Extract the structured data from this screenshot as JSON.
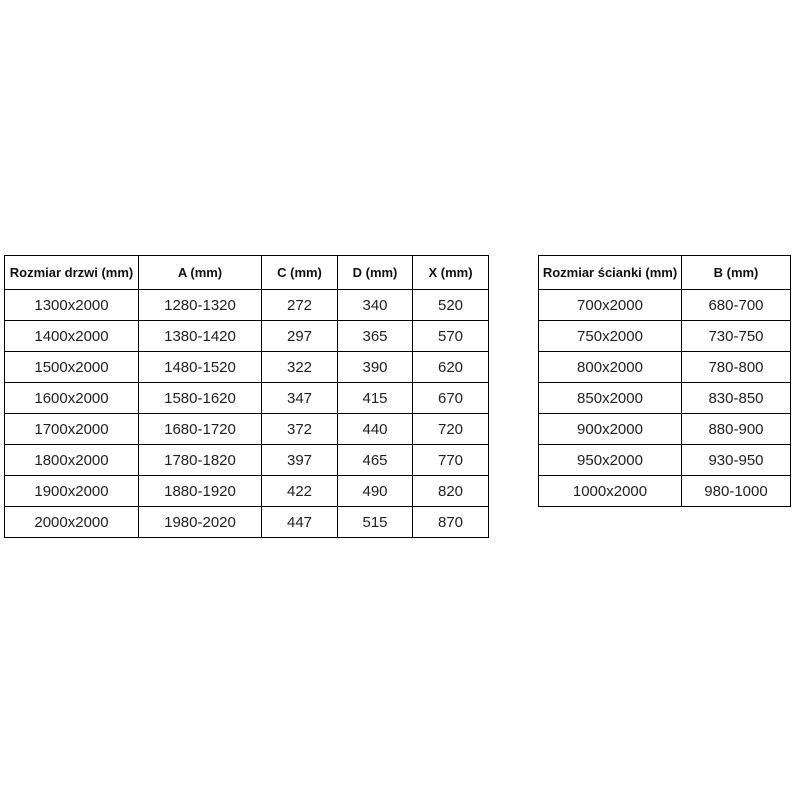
{
  "page": {
    "background_color": "#ffffff",
    "table_border_color": "#000000",
    "text_color": "#1f1f1f"
  },
  "tables": [
    {
      "name": "door-size-table",
      "headers": [
        "Rozmiar drzwi (mm)",
        "A (mm)",
        "C (mm)",
        "D (mm)",
        "X (mm)"
      ],
      "rows": [
        [
          "1300x2000",
          "1280-1320",
          "272",
          "340",
          "520"
        ],
        [
          "1400x2000",
          "1380-1420",
          "297",
          "365",
          "570"
        ],
        [
          "1500x2000",
          "1480-1520",
          "322",
          "390",
          "620"
        ],
        [
          "1600x2000",
          "1580-1620",
          "347",
          "415",
          "670"
        ],
        [
          "1700x2000",
          "1680-1720",
          "372",
          "440",
          "720"
        ],
        [
          "1800x2000",
          "1780-1820",
          "397",
          "465",
          "770"
        ],
        [
          "1900x2000",
          "1880-1920",
          "422",
          "490",
          "820"
        ],
        [
          "2000x2000",
          "1980-2020",
          "447",
          "515",
          "870"
        ]
      ]
    },
    {
      "name": "wall-size-table",
      "headers": [
        "Rozmiar ścianki (mm)",
        "B (mm)"
      ],
      "rows": [
        [
          "700x2000",
          "680-700"
        ],
        [
          "750x2000",
          "730-750"
        ],
        [
          "800x2000",
          "780-800"
        ],
        [
          "850x2000",
          "830-850"
        ],
        [
          "900x2000",
          "880-900"
        ],
        [
          "950x2000",
          "930-950"
        ],
        [
          "1000x2000",
          "980-1000"
        ]
      ]
    }
  ]
}
